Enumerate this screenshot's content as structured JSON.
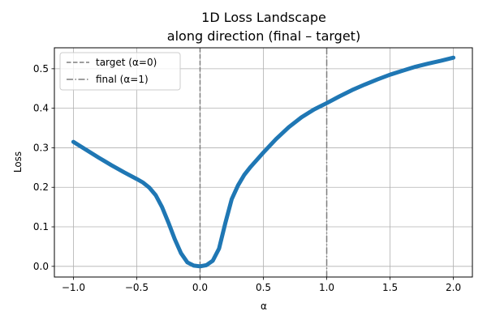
{
  "chart_data": {
    "type": "line",
    "title": "1D Loss Landscape",
    "subtitle": "along direction (final – target)",
    "xlabel": "α",
    "ylabel": "Loss",
    "xlim": [
      -1.15,
      2.15
    ],
    "ylim": [
      -0.027,
      0.553
    ],
    "xticks": [
      -1.0,
      -0.5,
      0.0,
      0.5,
      1.0,
      1.5,
      2.0
    ],
    "xtick_labels": [
      "−1.0",
      "−0.5",
      "0.0",
      "0.5",
      "1.0",
      "1.5",
      "2.0"
    ],
    "yticks": [
      0.0,
      0.1,
      0.2,
      0.3,
      0.4,
      0.5
    ],
    "ytick_labels": [
      "0.0",
      "0.1",
      "0.2",
      "0.3",
      "0.4",
      "0.5"
    ],
    "grid": true,
    "legend_position": "top-left",
    "series": [
      {
        "color": "#1f77b4",
        "x": [
          -1.0,
          -0.9,
          -0.8,
          -0.7,
          -0.6,
          -0.5,
          -0.45,
          -0.4,
          -0.35,
          -0.3,
          -0.25,
          -0.2,
          -0.15,
          -0.1,
          -0.05,
          0.0,
          0.05,
          0.1,
          0.15,
          0.2,
          0.25,
          0.3,
          0.35,
          0.4,
          0.5,
          0.6,
          0.7,
          0.8,
          0.9,
          1.0,
          1.1,
          1.2,
          1.3,
          1.4,
          1.5,
          1.6,
          1.7,
          1.8,
          1.9,
          2.0
        ],
        "y": [
          0.315,
          0.295,
          0.275,
          0.256,
          0.238,
          0.221,
          0.212,
          0.199,
          0.18,
          0.15,
          0.111,
          0.069,
          0.033,
          0.01,
          0.002,
          0.0,
          0.003,
          0.014,
          0.045,
          0.11,
          0.17,
          0.205,
          0.232,
          0.252,
          0.288,
          0.322,
          0.352,
          0.377,
          0.397,
          0.413,
          0.43,
          0.446,
          0.46,
          0.473,
          0.485,
          0.495,
          0.505,
          0.513,
          0.52,
          0.528
        ]
      }
    ],
    "vlines": [
      {
        "x": 0.0,
        "label": "target (α=0)",
        "style": "dashed",
        "color": "#7f7f7f"
      },
      {
        "x": 1.0,
        "label": "final  (α=1)",
        "style": "dashdot",
        "color": "#7f7f7f"
      }
    ]
  }
}
